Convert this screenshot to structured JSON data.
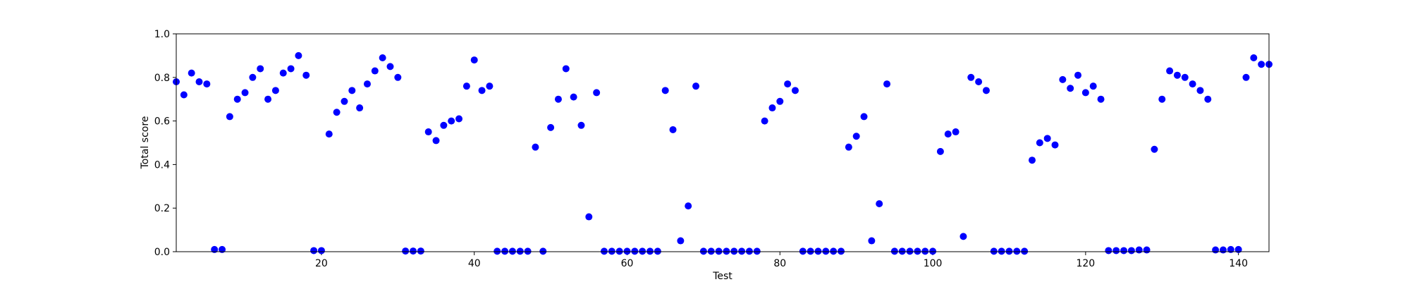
{
  "chart_data": {
    "type": "scatter",
    "title": "",
    "xlabel": "Test",
    "ylabel": "Total score",
    "xlim": [
      1,
      144
    ],
    "ylim": [
      0.0,
      1.0
    ],
    "xticks": [
      20,
      40,
      60,
      80,
      100,
      120,
      140
    ],
    "xtick_labels": [
      "20",
      "40",
      "60",
      "80",
      "100",
      "120",
      "140"
    ],
    "yticks": [
      0.0,
      0.2,
      0.4,
      0.6,
      0.8,
      1.0
    ],
    "ytick_labels": [
      "0.0",
      "0.2",
      "0.4",
      "0.6",
      "0.8",
      "1.0"
    ],
    "grid": false,
    "marker_color": "#0000ff",
    "x": [
      1,
      2,
      3,
      4,
      5,
      6,
      7,
      8,
      9,
      10,
      11,
      12,
      13,
      14,
      15,
      16,
      17,
      18,
      19,
      20,
      21,
      22,
      23,
      24,
      25,
      26,
      27,
      28,
      29,
      30,
      31,
      32,
      33,
      34,
      35,
      36,
      37,
      38,
      39,
      40,
      41,
      42,
      43,
      44,
      45,
      46,
      47,
      48,
      49,
      50,
      51,
      52,
      53,
      54,
      55,
      56,
      57,
      58,
      59,
      60,
      61,
      62,
      63,
      64,
      65,
      66,
      67,
      68,
      69,
      70,
      71,
      72,
      73,
      74,
      75,
      76,
      77,
      78,
      79,
      80,
      81,
      82,
      83,
      84,
      85,
      86,
      87,
      88,
      89,
      90,
      91,
      92,
      93,
      94,
      95,
      96,
      97,
      98,
      99,
      100,
      101,
      102,
      103,
      104,
      105,
      106,
      107,
      108,
      109,
      110,
      111,
      112,
      113,
      114,
      115,
      116,
      117,
      118,
      119,
      120,
      121,
      122,
      123,
      124,
      125,
      126,
      127,
      128,
      129,
      130,
      131,
      132,
      133,
      134,
      135,
      136,
      137,
      138,
      139,
      140,
      141,
      142,
      143,
      144
    ],
    "y": [
      0.78,
      0.72,
      0.82,
      0.78,
      0.77,
      0.01,
      0.01,
      0.62,
      0.7,
      0.73,
      0.8,
      0.84,
      0.7,
      0.74,
      0.82,
      0.84,
      0.9,
      0.81,
      0.005,
      0.005,
      0.54,
      0.64,
      0.69,
      0.74,
      0.66,
      0.77,
      0.83,
      0.89,
      0.85,
      0.8,
      0.003,
      0.003,
      0.003,
      0.55,
      0.51,
      0.58,
      0.6,
      0.61,
      0.76,
      0.88,
      0.74,
      0.76,
      0.002,
      0.002,
      0.002,
      0.002,
      0.002,
      0.48,
      0.002,
      0.57,
      0.7,
      0.84,
      0.71,
      0.58,
      0.16,
      0.73,
      0.002,
      0.002,
      0.002,
      0.002,
      0.002,
      0.002,
      0.002,
      0.002,
      0.74,
      0.56,
      0.05,
      0.21,
      0.76,
      0.002,
      0.002,
      0.002,
      0.002,
      0.002,
      0.002,
      0.002,
      0.002,
      0.6,
      0.66,
      0.69,
      0.77,
      0.74,
      0.002,
      0.002,
      0.002,
      0.002,
      0.002,
      0.002,
      0.48,
      0.53,
      0.62,
      0.05,
      0.22,
      0.77,
      0.002,
      0.002,
      0.002,
      0.002,
      0.002,
      0.002,
      0.46,
      0.54,
      0.55,
      0.07,
      0.8,
      0.78,
      0.74,
      0.002,
      0.002,
      0.002,
      0.002,
      0.002,
      0.42,
      0.5,
      0.52,
      0.49,
      0.79,
      0.75,
      0.81,
      0.73,
      0.76,
      0.7,
      0.005,
      0.005,
      0.005,
      0.005,
      0.008,
      0.008,
      0.47,
      0.7,
      0.83,
      0.81,
      0.8,
      0.77,
      0.74,
      0.7,
      0.008,
      0.008,
      0.01,
      0.01,
      0.8,
      0.89,
      0.86,
      0.86
    ]
  }
}
